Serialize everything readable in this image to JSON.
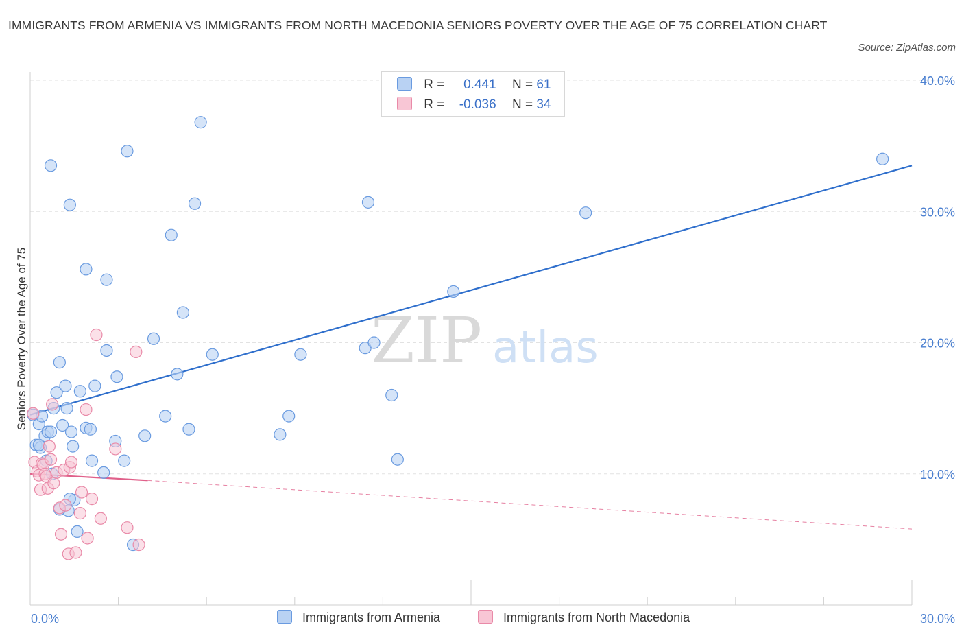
{
  "title": "IMMIGRANTS FROM ARMENIA VS IMMIGRANTS FROM NORTH MACEDONIA SENIORS POVERTY OVER THE AGE OF 75 CORRELATION CHART",
  "source": "Source: ZipAtlas.com",
  "watermark": {
    "zip": "ZIP",
    "atlas": "atlas"
  },
  "legend": {
    "rows": [
      {
        "r_label": "R = ",
        "r_value": "0.441",
        "n_label": "N = ",
        "n_value": "61"
      },
      {
        "r_label": "R = ",
        "r_value": "-0.036",
        "n_label": "N = ",
        "n_value": "34"
      }
    ]
  },
  "colors": {
    "armenia_fill": "#b9d2f3",
    "armenia_stroke": "#6a9be0",
    "armenia_line": "#2f6fcc",
    "macedonia_fill": "#f8c6d5",
    "macedonia_stroke": "#e98aa8",
    "macedonia_line": "#e0608a",
    "grid": "#e2e2e2",
    "tick_text": "#4a7fd0"
  },
  "chart_data": {
    "type": "scatter",
    "title": "IMMIGRANTS FROM ARMENIA VS IMMIGRANTS FROM NORTH MACEDONIA SENIORS POVERTY OVER THE AGE OF 75 CORRELATION CHART",
    "xlabel": "",
    "ylabel": "Seniors Poverty Over the Age of 75",
    "xlim": [
      0,
      30
    ],
    "ylim": [
      0,
      40
    ],
    "x_tick_labels": [
      "0.0%",
      "30.0%"
    ],
    "y_tick_labels": [
      "10.0%",
      "20.0%",
      "30.0%",
      "40.0%"
    ],
    "y_ticks": [
      10,
      20,
      30,
      40
    ],
    "grid": true,
    "legend_position": "bottom",
    "series": [
      {
        "name": "Immigrants from Armenia",
        "r": 0.441,
        "n": 61,
        "trend": {
          "x": [
            0,
            30
          ],
          "y": [
            14.5,
            33.5
          ],
          "style": "solid"
        },
        "points": [
          [
            0.1,
            14.5
          ],
          [
            0.2,
            12.2
          ],
          [
            0.3,
            13.8
          ],
          [
            0.35,
            12.0
          ],
          [
            0.4,
            14.4
          ],
          [
            0.5,
            12.9
          ],
          [
            0.55,
            11.0
          ],
          [
            0.6,
            13.2
          ],
          [
            0.7,
            13.2
          ],
          [
            0.75,
            10.0
          ],
          [
            0.8,
            15.0
          ],
          [
            0.9,
            16.2
          ],
          [
            1.0,
            18.5
          ],
          [
            1.1,
            13.7
          ],
          [
            1.2,
            16.7
          ],
          [
            1.25,
            15.0
          ],
          [
            1.4,
            13.2
          ],
          [
            1.45,
            12.1
          ],
          [
            1.5,
            8.0
          ],
          [
            1.6,
            5.6
          ],
          [
            1.7,
            16.3
          ],
          [
            1.9,
            13.5
          ],
          [
            2.05,
            13.4
          ],
          [
            2.1,
            11.0
          ],
          [
            2.2,
            16.7
          ],
          [
            2.5,
            10.1
          ],
          [
            2.9,
            12.5
          ],
          [
            2.95,
            17.4
          ],
          [
            3.2,
            11.0
          ],
          [
            3.5,
            4.6
          ],
          [
            3.9,
            12.9
          ],
          [
            4.6,
            14.4
          ],
          [
            5.0,
            17.6
          ],
          [
            5.4,
            13.4
          ],
          [
            6.2,
            19.1
          ],
          [
            8.5,
            13.0
          ],
          [
            8.8,
            14.4
          ],
          [
            9.2,
            19.1
          ],
          [
            11.4,
            19.6
          ],
          [
            11.7,
            20.0
          ],
          [
            12.3,
            16.0
          ],
          [
            12.5,
            11.1
          ],
          [
            14.4,
            23.9
          ],
          [
            1.3,
            7.2
          ],
          [
            1.35,
            8.1
          ],
          [
            0.7,
            33.5
          ],
          [
            1.35,
            30.5
          ],
          [
            1.9,
            25.6
          ],
          [
            2.6,
            24.8
          ],
          [
            3.3,
            34.6
          ],
          [
            4.2,
            20.3
          ],
          [
            4.8,
            28.2
          ],
          [
            5.2,
            22.3
          ],
          [
            5.6,
            30.6
          ],
          [
            5.8,
            36.8
          ],
          [
            11.5,
            30.7
          ],
          [
            18.9,
            29.9
          ],
          [
            29.0,
            34.0
          ],
          [
            2.6,
            19.4
          ],
          [
            0.3,
            12.2
          ],
          [
            1.0,
            7.3
          ]
        ]
      },
      {
        "name": "Immigrants from North Macedonia",
        "r": -0.036,
        "n": 34,
        "trend": {
          "x": [
            0,
            4.0
          ],
          "y": [
            10.0,
            9.5
          ],
          "style": "solid",
          "extended": {
            "x": [
              4.0,
              30
            ],
            "y": [
              9.5,
              5.8
            ],
            "style": "dashed"
          }
        },
        "points": [
          [
            0.1,
            14.6
          ],
          [
            0.15,
            10.9
          ],
          [
            0.25,
            10.2
          ],
          [
            0.3,
            9.9
          ],
          [
            0.35,
            8.8
          ],
          [
            0.4,
            10.8
          ],
          [
            0.45,
            10.7
          ],
          [
            0.5,
            10.0
          ],
          [
            0.55,
            9.8
          ],
          [
            0.6,
            8.9
          ],
          [
            0.65,
            12.1
          ],
          [
            0.7,
            11.1
          ],
          [
            0.75,
            15.3
          ],
          [
            0.8,
            9.3
          ],
          [
            0.9,
            10.1
          ],
          [
            1.0,
            7.4
          ],
          [
            1.05,
            5.4
          ],
          [
            1.15,
            10.3
          ],
          [
            1.2,
            7.6
          ],
          [
            1.3,
            3.9
          ],
          [
            1.35,
            10.5
          ],
          [
            1.4,
            10.9
          ],
          [
            1.55,
            4.0
          ],
          [
            1.7,
            7.0
          ],
          [
            1.75,
            8.6
          ],
          [
            1.9,
            14.9
          ],
          [
            1.95,
            5.1
          ],
          [
            2.1,
            8.1
          ],
          [
            2.25,
            20.6
          ],
          [
            2.4,
            6.6
          ],
          [
            2.9,
            11.9
          ],
          [
            3.3,
            5.9
          ],
          [
            3.6,
            19.3
          ],
          [
            3.7,
            4.6
          ]
        ]
      }
    ]
  },
  "bottom_legend": [
    {
      "label": "Immigrants from Armenia"
    },
    {
      "label": "Immigrants from North Macedonia"
    }
  ]
}
